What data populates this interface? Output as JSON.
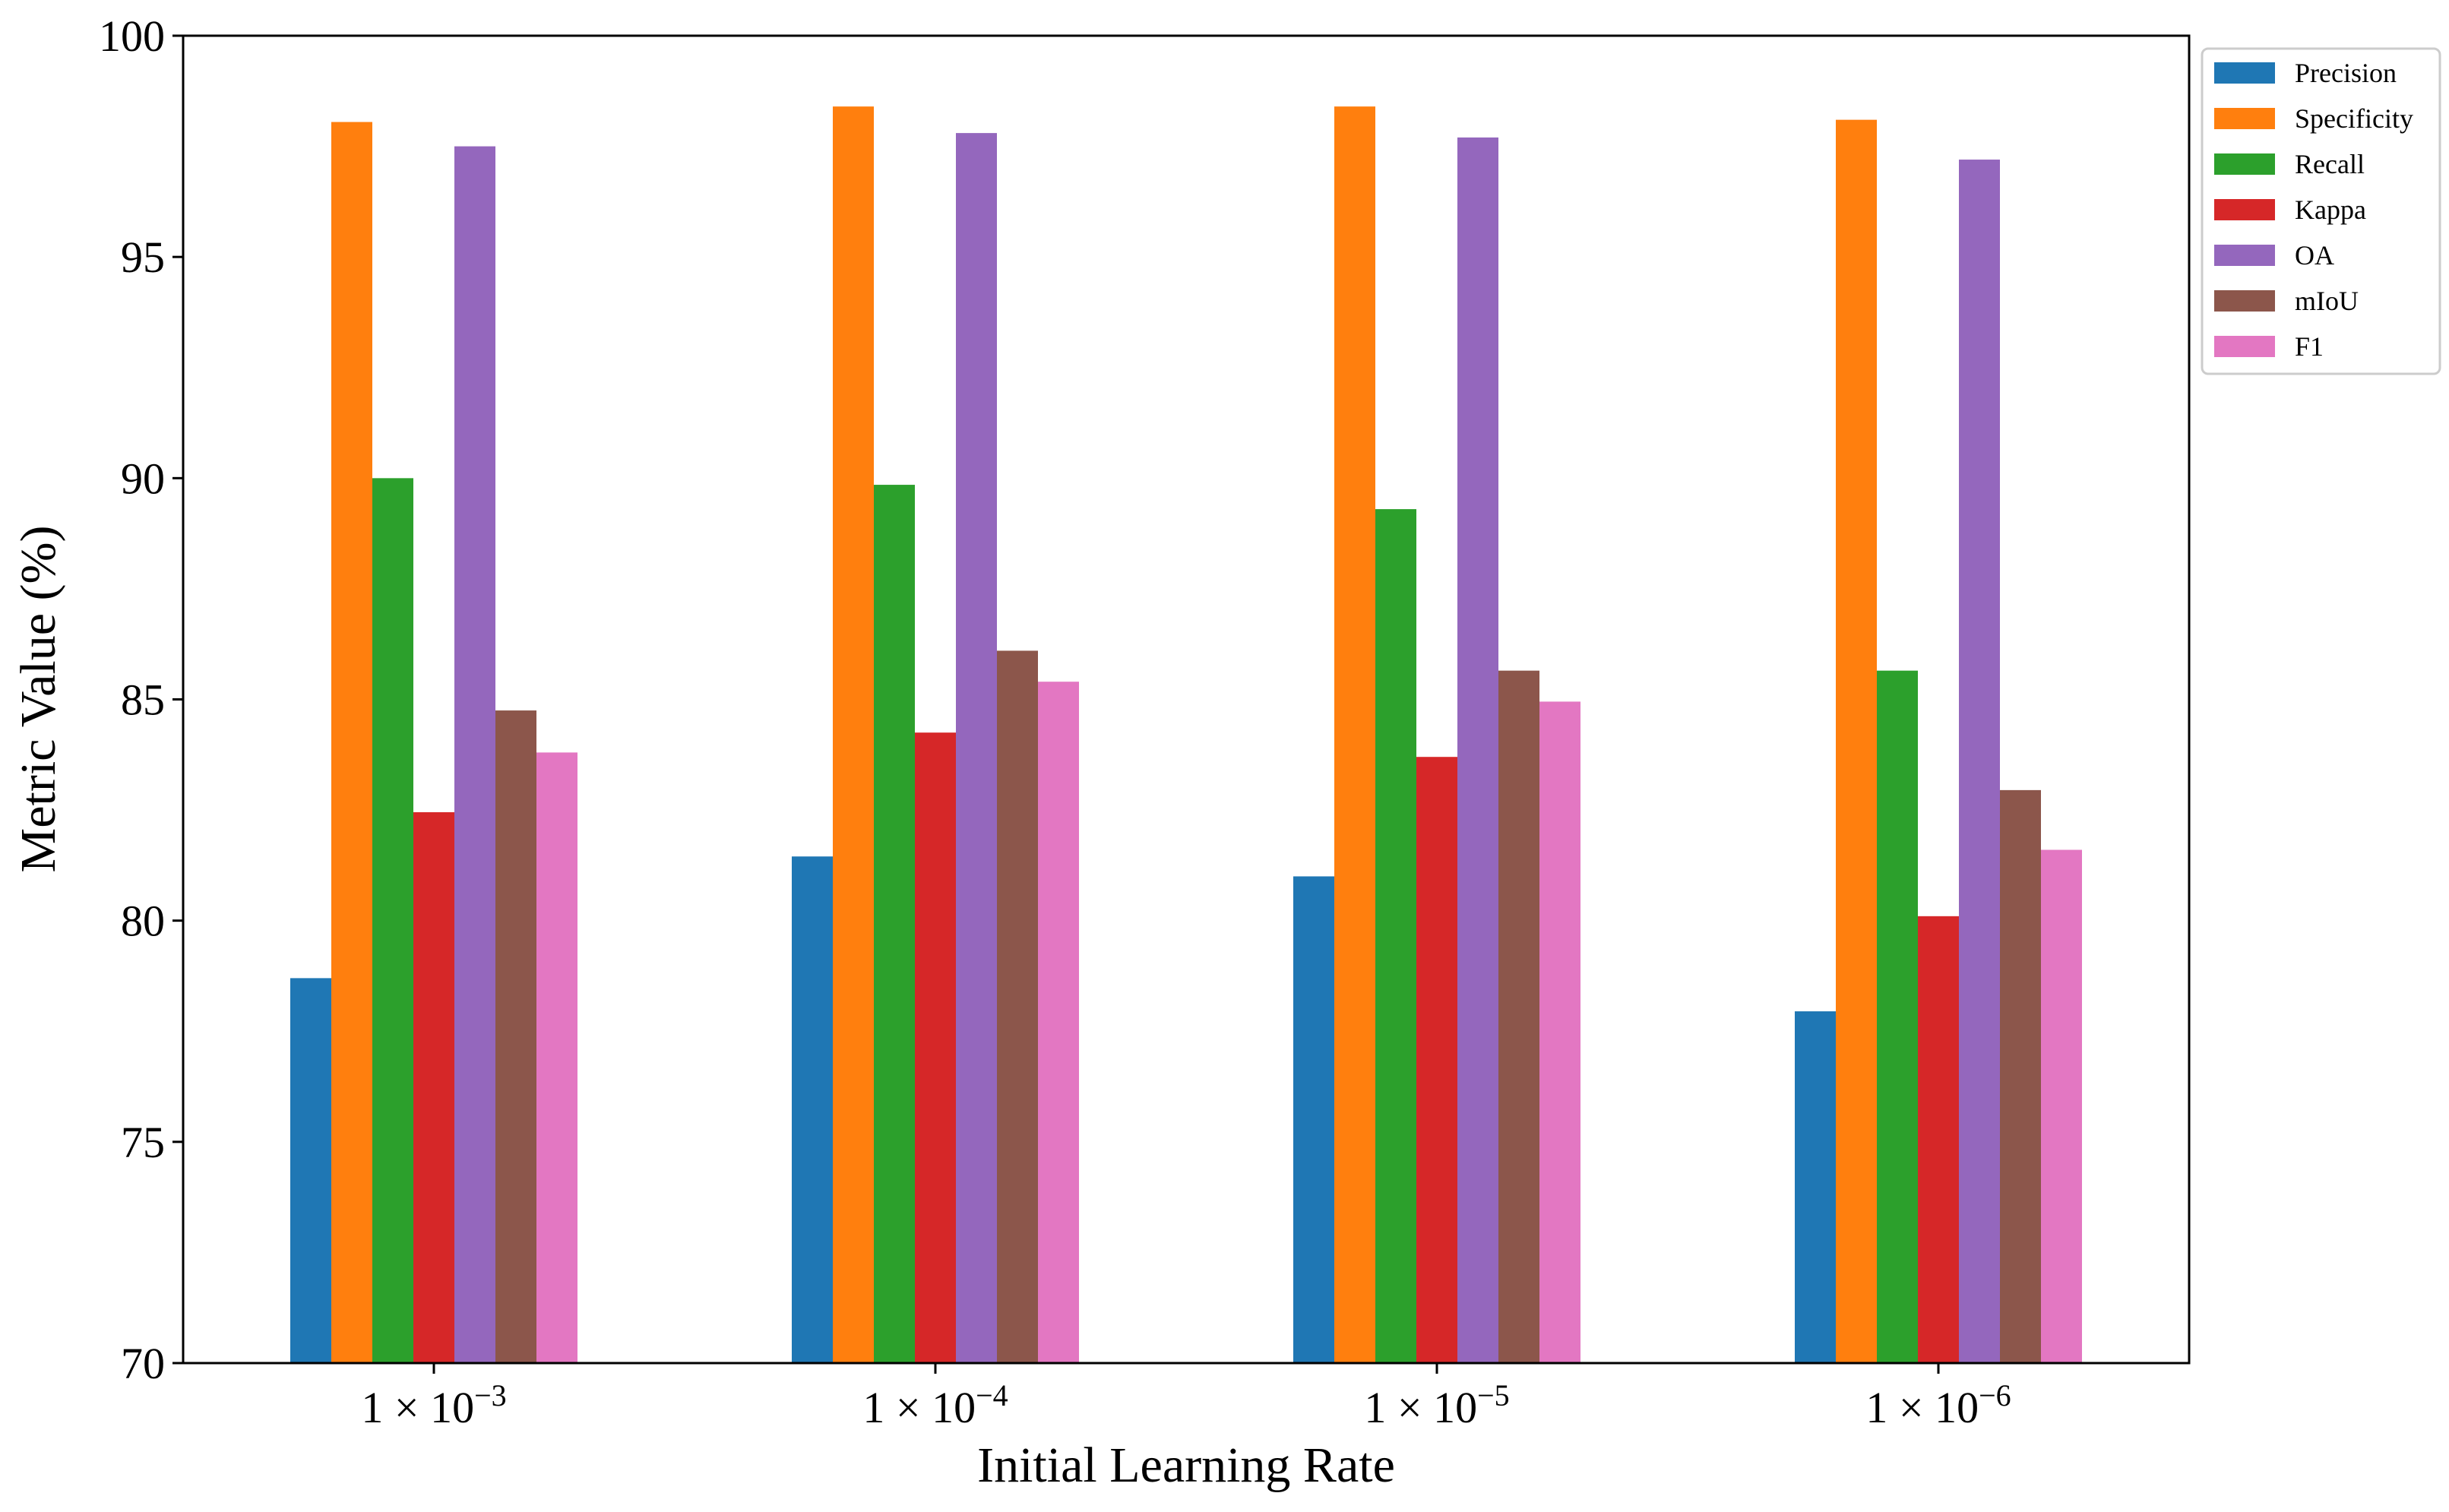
{
  "chart_data": {
    "type": "bar",
    "title": "",
    "xlabel": "Initial Learning Rate",
    "ylabel": "Metric Value (%)",
    "ylim": [
      70,
      100
    ],
    "yticks": [
      "70",
      "75",
      "80",
      "85",
      "90",
      "95",
      "100"
    ],
    "categories": [
      {
        "base": "1 × 10",
        "exp": "−3"
      },
      {
        "base": "1 × 10",
        "exp": "−4"
      },
      {
        "base": "1 × 10",
        "exp": "−5"
      },
      {
        "base": "1 × 10",
        "exp": "−6"
      }
    ],
    "series": [
      {
        "name": "Precision",
        "color": "#1f77b4",
        "values": [
          78.7,
          81.45,
          81.0,
          77.95
        ]
      },
      {
        "name": "Specificity",
        "color": "#ff7f0e",
        "values": [
          98.05,
          98.4,
          98.4,
          98.1
        ]
      },
      {
        "name": "Recall",
        "color": "#2ca02c",
        "values": [
          90.0,
          89.85,
          89.3,
          85.65
        ]
      },
      {
        "name": "Kappa",
        "color": "#d62728",
        "values": [
          82.45,
          84.25,
          83.7,
          80.1
        ]
      },
      {
        "name": "OA",
        "color": "#9467bd",
        "values": [
          97.5,
          97.8,
          97.7,
          97.2
        ]
      },
      {
        "name": "mIoU",
        "color": "#8c564b",
        "values": [
          84.75,
          86.1,
          85.65,
          82.95
        ]
      },
      {
        "name": "F1",
        "color": "#e377c2",
        "values": [
          83.8,
          85.4,
          84.95,
          81.6
        ]
      }
    ],
    "grid": false,
    "legend_position": "outside-top-right"
  }
}
